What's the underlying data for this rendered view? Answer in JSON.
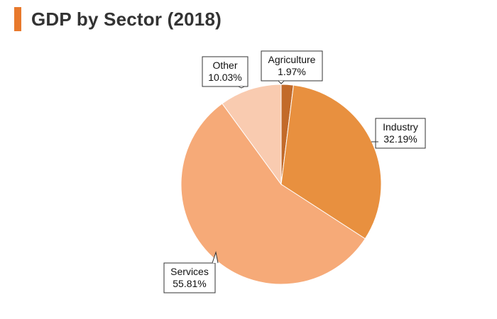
{
  "header": {
    "title": "GDP by Sector (2018)",
    "accent_color": "#e8792c"
  },
  "chart_data": {
    "type": "pie",
    "title": "GDP by Sector (2018)",
    "slices": [
      {
        "label": "Agriculture",
        "value": 1.97,
        "display": "1.97%",
        "color": "#c26a2a"
      },
      {
        "label": "Industry",
        "value": 32.19,
        "display": "32.19%",
        "color": "#e8903f"
      },
      {
        "label": "Services",
        "value": 55.81,
        "display": "55.81%",
        "color": "#f6aa78"
      },
      {
        "label": "Other",
        "value": 10.03,
        "display": "10.03%",
        "color": "#f9cbb0"
      }
    ],
    "start": "top",
    "direction": "clockwise",
    "legend": "none",
    "labels": "callouts"
  }
}
